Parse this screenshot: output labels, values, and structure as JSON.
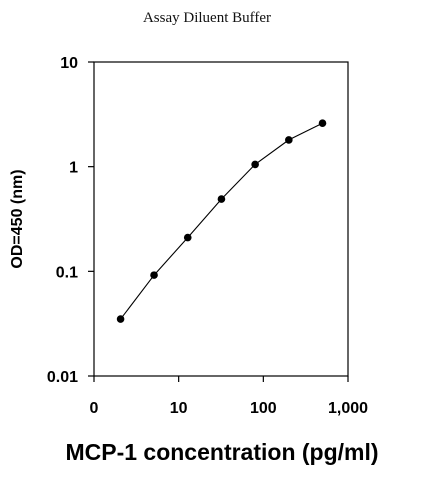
{
  "chart_data": {
    "type": "line",
    "title": "Assay Diluent Buffer",
    "xlabel": "MCP-1 concentration (pg/ml)",
    "ylabel": "OD=450 (nm)",
    "xscale": "log",
    "yscale": "log",
    "xlim": [
      1,
      1000
    ],
    "ylim": [
      0.01,
      10
    ],
    "x_tick_labels": [
      "0",
      "10",
      "100",
      "1,000"
    ],
    "y_tick_labels": [
      "10",
      "1",
      "0.1",
      "0.01"
    ],
    "grid": false,
    "legend": "none",
    "series": [
      {
        "x": [
          2.06,
          5.12,
          12.8,
          32,
          80,
          200,
          500
        ],
        "y": [
          0.035,
          0.092,
          0.21,
          0.49,
          1.05,
          1.8,
          2.6
        ]
      }
    ]
  }
}
